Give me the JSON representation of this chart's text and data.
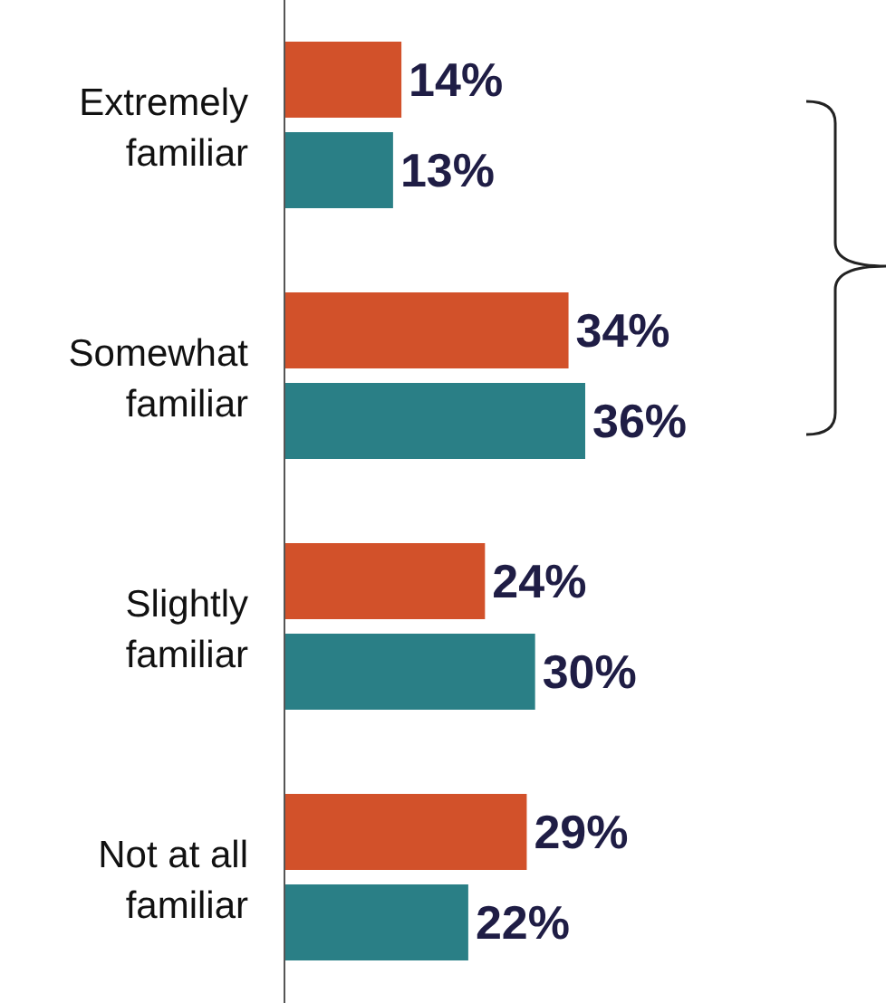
{
  "chart_data": {
    "type": "bar",
    "orientation": "horizontal",
    "categories": [
      "Extremely familiar",
      "Somewhat familiar",
      "Slightly familiar",
      "Not at all familiar"
    ],
    "series": [
      {
        "color": "#d2512a",
        "values": [
          14,
          34,
          24,
          29
        ],
        "value_labels": [
          "14%",
          "34%",
          "24%",
          "29%"
        ]
      },
      {
        "color": "#2a7f86",
        "values": [
          13,
          36,
          30,
          22
        ],
        "value_labels": [
          "13%",
          "36%",
          "30%",
          "22%"
        ]
      }
    ]
  }
}
